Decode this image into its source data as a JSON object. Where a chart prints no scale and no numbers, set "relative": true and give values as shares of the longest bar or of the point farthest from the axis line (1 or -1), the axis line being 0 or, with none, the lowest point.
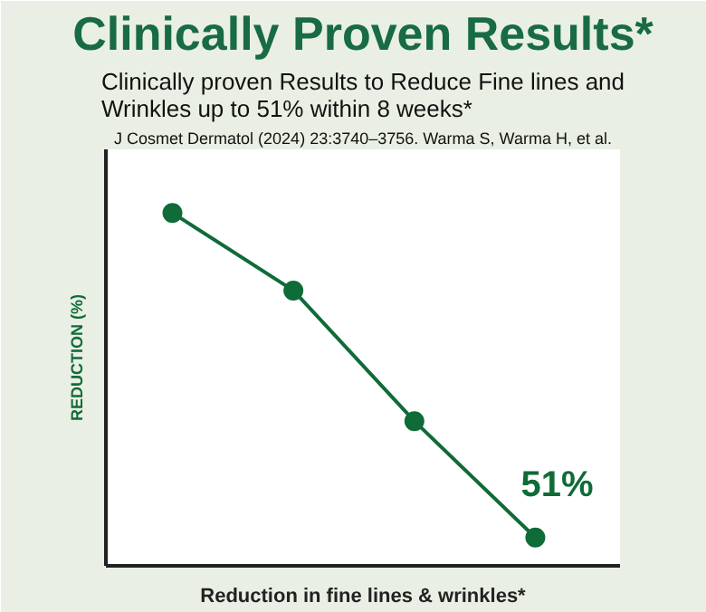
{
  "chart_data": {
    "type": "line",
    "title": "Clinically Proven Results*",
    "subtitle": "Clinically proven Results to Reduce Fine lines and Wrinkles up to 51% within 8 weeks*",
    "annotations": [
      "J Cosmet Dermatol (2024) 23:3740–3756. Warma S, Warma H, et al.",
      "51%"
    ],
    "xlabel": "Reduction in fine lines & wrinkles*",
    "ylabel": "REDUCTION (%)",
    "relative": true,
    "categories": [
      null,
      null,
      null,
      null
    ],
    "series": [
      {
        "color": "#0f6b37",
        "values": [
          1,
          0.78,
          0.41,
          0.08
        ]
      }
    ],
    "marker": "circle",
    "line_style": "solid",
    "grid": false
  }
}
